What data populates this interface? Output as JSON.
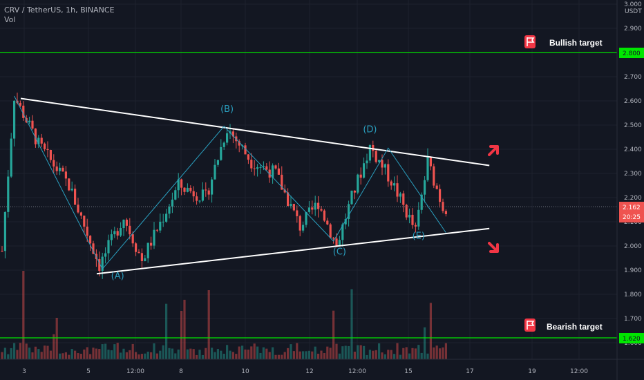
{
  "header": {
    "symbol": "CRV / TetherUS, 1h, BINANCE",
    "indicator": "Vol"
  },
  "axis": {
    "currency": "USDT",
    "y_ticks": [
      "1.600",
      "1.700",
      "1.800",
      "1.900",
      "2.000",
      "2.100",
      "2.200",
      "2.300",
      "2.400",
      "2.500",
      "2.600",
      "2.700",
      "2.800",
      "2.900",
      "3.000"
    ],
    "x_ticks": [
      "3",
      "5",
      "12:00",
      "8",
      "10",
      "12",
      "12:00",
      "15",
      "17",
      "19",
      "12:00"
    ]
  },
  "badges": {
    "bullish": "2.800",
    "bearish": "1.620",
    "last_price": "2.162",
    "countdown": "20:25"
  },
  "colors": {
    "background": "#131722",
    "up": "#26a69a",
    "down": "#ef5350",
    "target_line": "#00e600",
    "trendline": "#ffffff",
    "wave": "#2a9fbf",
    "arrow": "#f23645"
  },
  "annotations": {
    "bullish_target": "Bullish target",
    "bearish_target": "Bearish target",
    "waves": [
      "(A)",
      "(B)",
      "(C)",
      "(D)",
      "(E)"
    ],
    "flag_icon": "flag-icon",
    "arrow_up_icon": "arrow-up-right-icon",
    "arrow_down_icon": "arrow-down-right-icon"
  },
  "chart_data": {
    "type": "candlestick",
    "ylim": [
      1.59,
      3.02
    ],
    "y_scale": "linear",
    "grid": true,
    "levels": {
      "bullish_target": 2.8,
      "bearish_target": 1.62,
      "last_price": 2.162
    },
    "triangle": {
      "upper": [
        [
          0,
          2.61
        ],
        [
          158,
          2.333
        ]
      ],
      "lower": [
        [
          30,
          1.885
        ],
        [
          158,
          2.072
        ]
      ]
    },
    "wave_path": [
      [
        4,
        2.62
      ],
      [
        33,
        1.905
      ],
      [
        73,
        2.495
      ],
      [
        109,
        2.02
      ],
      [
        127,
        2.405
      ],
      [
        146,
        2.055
      ]
    ],
    "wave_points": [
      {
        "label": "(A)",
        "bar": 38,
        "price": 1.865
      },
      {
        "label": "(B)",
        "bar": 74,
        "price": 2.555
      },
      {
        "label": "(C)",
        "bar": 111,
        "price": 1.965
      },
      {
        "label": "(D)",
        "bar": 121,
        "price": 2.47
      },
      {
        "label": "(E)",
        "bar": 137,
        "price": 2.03
      }
    ],
    "anchors": [
      [
        0,
        1.98
      ],
      [
        4,
        2.62
      ],
      [
        12,
        2.42
      ],
      [
        22,
        2.25
      ],
      [
        32,
        1.92
      ],
      [
        40,
        2.12
      ],
      [
        46,
        1.94
      ],
      [
        58,
        2.25
      ],
      [
        67,
        2.2
      ],
      [
        74,
        2.49
      ],
      [
        82,
        2.35
      ],
      [
        90,
        2.3
      ],
      [
        98,
        2.08
      ],
      [
        104,
        2.18
      ],
      [
        110,
        2.0
      ],
      [
        115,
        2.2
      ],
      [
        121,
        2.41
      ],
      [
        128,
        2.27
      ],
      [
        136,
        2.06
      ],
      [
        140,
        2.35
      ],
      [
        145,
        2.16
      ]
    ],
    "bar_count": 146,
    "volume_max": 1.0
  }
}
